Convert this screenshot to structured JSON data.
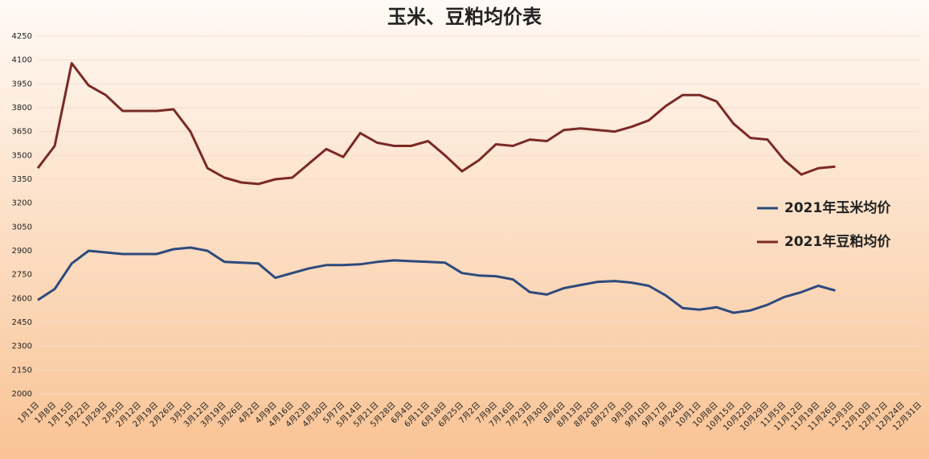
{
  "chart_data": {
    "type": "line",
    "title": "玉米、豆粕均价表",
    "categories": [
      "1月1日",
      "1月8日",
      "1月15日",
      "1月22日",
      "1月29日",
      "2月5日",
      "2月12日",
      "2月19日",
      "2月26日",
      "3月5日",
      "3月12日",
      "3月19日",
      "3月26日",
      "4月2日",
      "4月9日",
      "4月16日",
      "4月23日",
      "4月30日",
      "5月7日",
      "5月14日",
      "5月21日",
      "5月28日",
      "6月4日",
      "6月11日",
      "6月18日",
      "6月25日",
      "7月2日",
      "7月9日",
      "7月16日",
      "7月23日",
      "7月30日",
      "8月6日",
      "8月13日",
      "8月20日",
      "8月27日",
      "9月3日",
      "9月10日",
      "9月17日",
      "9月24日",
      "10月1日",
      "10月8日",
      "10月15日",
      "10月22日",
      "10月29日",
      "11月5日",
      "11月12日",
      "11月19日",
      "11月26日",
      "12月3日",
      "12月10日",
      "12月17日",
      "12月24日",
      "12月31日"
    ],
    "series": [
      {
        "name": "2021年玉米均价",
        "color": "#2e4a7d",
        "values": [
          2590,
          2660,
          2820,
          2900,
          2890,
          2880,
          2880,
          2880,
          2910,
          2920,
          2900,
          2830,
          2825,
          2820,
          2730,
          2760,
          2790,
          2810,
          2810,
          2815,
          2830,
          2840,
          2835,
          2830,
          2825,
          2760,
          2745,
          2740,
          2720,
          2640,
          2625,
          2665,
          2685,
          2705,
          2710,
          2700,
          2680,
          2620,
          2540,
          2530,
          2545,
          2510,
          2525,
          2560,
          2610,
          2640,
          2680,
          2650,
          null,
          null,
          null,
          null,
          null
        ]
      },
      {
        "name": "2021年豆粕均价",
        "color": "#7a2a25",
        "values": [
          3420,
          3560,
          4080,
          3940,
          3880,
          3780,
          3780,
          3780,
          3790,
          3650,
          3420,
          3360,
          3330,
          3320,
          3350,
          3360,
          3450,
          3540,
          3490,
          3640,
          3580,
          3560,
          3560,
          3590,
          3500,
          3400,
          3470,
          3570,
          3560,
          3600,
          3590,
          3660,
          3670,
          3660,
          3650,
          3680,
          3720,
          3810,
          3880,
          3880,
          3840,
          3700,
          3610,
          3600,
          3470,
          3380,
          3420,
          3430,
          null,
          null,
          null,
          null,
          null
        ]
      }
    ],
    "ylim": [
      2000,
      4250
    ],
    "yticks": [
      2000,
      2150,
      2300,
      2450,
      2600,
      2750,
      2900,
      3050,
      3200,
      3350,
      3500,
      3650,
      3800,
      3950,
      4100,
      4250
    ],
    "grid": true
  }
}
